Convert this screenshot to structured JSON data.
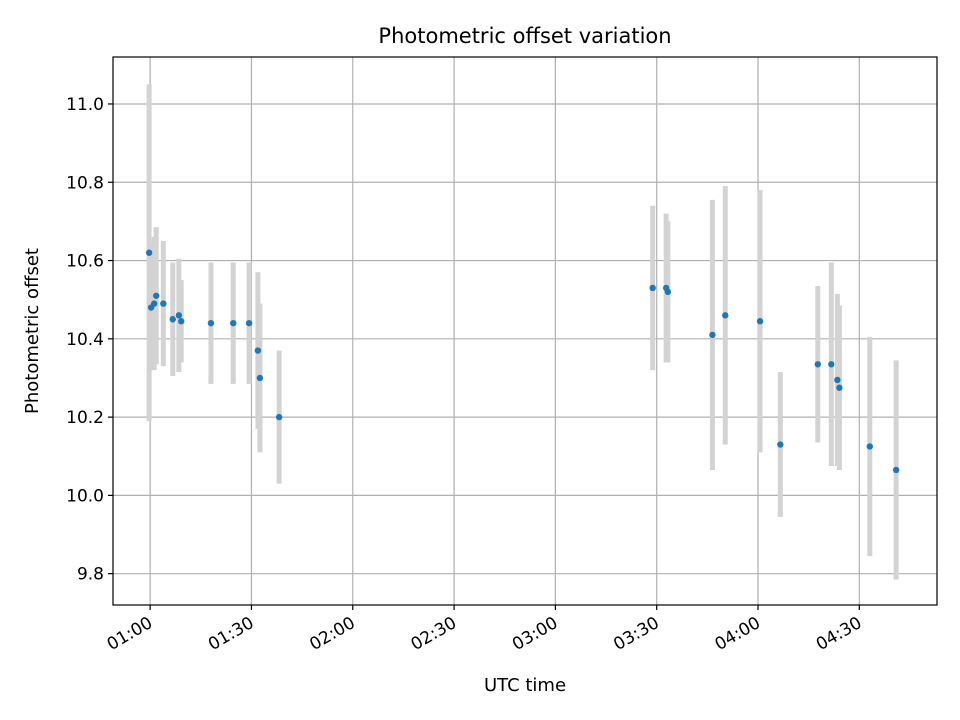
{
  "chart_data": {
    "type": "scatter",
    "title": "Photometric offset variation",
    "xlabel": "UTC time",
    "ylabel": "Photometric offset",
    "xlim": [
      "00:49",
      "04:53"
    ],
    "ylim": [
      9.72,
      11.12
    ],
    "x_ticks": [
      "01:00",
      "01:30",
      "02:00",
      "02:30",
      "03:00",
      "03:30",
      "04:00",
      "04:30"
    ],
    "y_ticks": [
      9.8,
      10.0,
      10.2,
      10.4,
      10.6,
      10.8,
      11.0
    ],
    "y_tick_labels": [
      "9.8",
      "10.0",
      "10.2",
      "10.4",
      "10.6",
      "10.8",
      "11.0"
    ],
    "grid": true,
    "colors": {
      "marker": "#1f77b4",
      "errorbar": "#d3d3d3",
      "grid": "#b0b0b0"
    },
    "series": [
      {
        "points": [
          {
            "x": "00:59:42",
            "y": 10.62,
            "yerr": 0.43
          },
          {
            "x": "01:00:18",
            "y": 10.48,
            "yerr": 0.16
          },
          {
            "x": "01:01:12",
            "y": 10.49,
            "yerr": 0.17
          },
          {
            "x": "01:01:48",
            "y": 10.51,
            "yerr": 0.175
          },
          {
            "x": "01:03:54",
            "y": 10.49,
            "yerr": 0.16
          },
          {
            "x": "01:06:42",
            "y": 10.45,
            "yerr": 0.145
          },
          {
            "x": "01:08:30",
            "y": 10.46,
            "yerr": 0.145
          },
          {
            "x": "01:09:12",
            "y": 10.445,
            "yerr": 0.105
          },
          {
            "x": "01:18:00",
            "y": 10.44,
            "yerr": 0.155
          },
          {
            "x": "01:24:36",
            "y": 10.44,
            "yerr": 0.155
          },
          {
            "x": "01:29:18",
            "y": 10.44,
            "yerr": 0.155
          },
          {
            "x": "01:31:54",
            "y": 10.37,
            "yerr": 0.2
          },
          {
            "x": "01:32:30",
            "y": 10.3,
            "yerr": 0.19
          },
          {
            "x": "01:38:12",
            "y": 10.2,
            "yerr": 0.17
          },
          {
            "x": "03:28:48",
            "y": 10.53,
            "yerr": 0.21
          },
          {
            "x": "03:32:48",
            "y": 10.53,
            "yerr": 0.19
          },
          {
            "x": "03:33:18",
            "y": 10.52,
            "yerr": 0.18
          },
          {
            "x": "03:46:30",
            "y": 10.41,
            "yerr": 0.345
          },
          {
            "x": "03:50:18",
            "y": 10.46,
            "yerr": 0.33
          },
          {
            "x": "04:00:36",
            "y": 10.445,
            "yerr": 0.335
          },
          {
            "x": "04:06:36",
            "y": 10.13,
            "yerr": 0.185
          },
          {
            "x": "04:17:42",
            "y": 10.335,
            "yerr": 0.2
          },
          {
            "x": "04:21:42",
            "y": 10.335,
            "yerr": 0.26
          },
          {
            "x": "04:23:30",
            "y": 10.295,
            "yerr": 0.22
          },
          {
            "x": "04:24:06",
            "y": 10.275,
            "yerr": 0.21
          },
          {
            "x": "04:33:06",
            "y": 10.125,
            "yerr": 0.28
          },
          {
            "x": "04:40:54",
            "y": 10.065,
            "yerr": 0.28
          }
        ]
      }
    ]
  }
}
